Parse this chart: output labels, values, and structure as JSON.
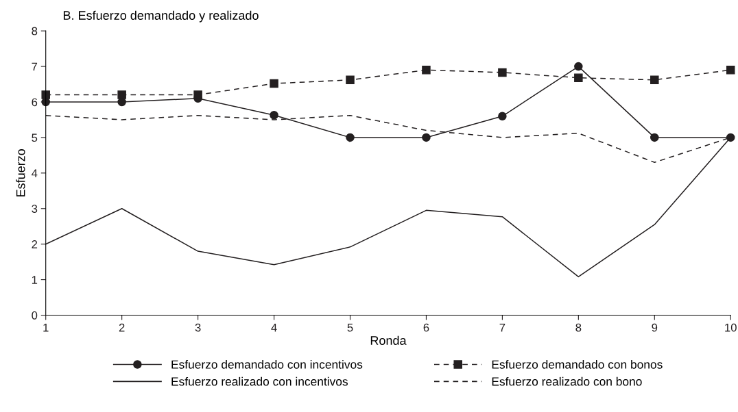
{
  "chart_data": {
    "type": "line",
    "title": "B. Esfuerzo demandado y realizado",
    "xlabel": "Ronda",
    "ylabel": "Esfuerzo",
    "x": [
      1,
      2,
      3,
      4,
      5,
      6,
      7,
      8,
      9,
      10
    ],
    "xlim": [
      1,
      10
    ],
    "xticks": [
      1,
      2,
      3,
      4,
      5,
      6,
      7,
      8,
      9,
      10
    ],
    "ylim": [
      0,
      8
    ],
    "yticks": [
      0,
      1,
      2,
      3,
      4,
      5,
      6,
      7,
      8
    ],
    "grid": false,
    "legend": "bottom",
    "series": [
      {
        "name": "Esfuerzo demandado con incentivos",
        "color": "#231f20",
        "marker": "circle",
        "line_style": "solid",
        "values": [
          6,
          6,
          6.1,
          5.63,
          5,
          5,
          5.6,
          7,
          5,
          5
        ]
      },
      {
        "name": "Esfuerzo realizado con incentivos",
        "color": "#231f20",
        "marker": "none",
        "line_style": "solid",
        "values": [
          2,
          3,
          1.8,
          1.42,
          1.92,
          2.95,
          2.77,
          1.08,
          2.55,
          5
        ]
      },
      {
        "name": "Esfuerzo demandado con bonos",
        "color": "#231f20",
        "marker": "square",
        "line_style": "dashed",
        "values": [
          6.2,
          6.2,
          6.2,
          6.52,
          6.62,
          6.9,
          6.83,
          6.68,
          6.62,
          6.9
        ]
      },
      {
        "name": "Esfuerzo realizado con bono",
        "color": "#231f20",
        "marker": "none",
        "line_style": "dashed",
        "values": [
          5.62,
          5.5,
          5.62,
          5.5,
          5.62,
          5.2,
          5.0,
          5.12,
          4.3,
          5.0
        ]
      }
    ]
  }
}
